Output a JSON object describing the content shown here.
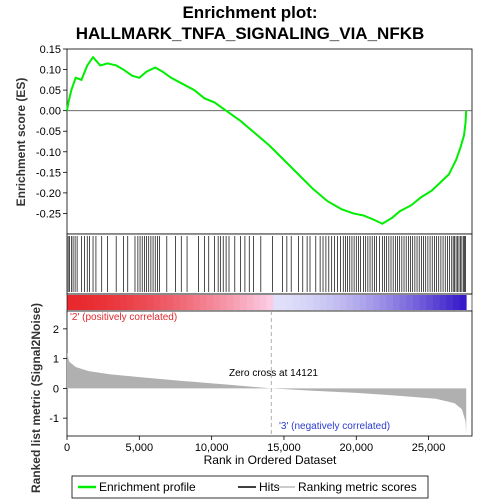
{
  "title_line1": "Enrichment plot:",
  "title_line2": "HALLMARK_TNFA_SIGNALING_VIA_NFKB",
  "top_ylabel": "Enrichment score (ES)",
  "bottom_ylabel": "Ranked list metric (Signal2Noise)",
  "xlabel": "Rank in Ordered Dataset",
  "zero_cross_label": "Zero cross at 14121",
  "pos_label": "'2' (positively correlated)",
  "neg_label": "'3' (negatively correlated)",
  "legend": {
    "enrichment": "Enrichment profile",
    "hits": "Hits",
    "ranking": "Ranking metric scores"
  },
  "colors": {
    "enrichment": "#00ee00",
    "hits": "#000000",
    "metric_fill": "#b0b0b0",
    "positive": "#e0282d",
    "negative": "#2b3bd0"
  },
  "chart_data": {
    "type": "line",
    "x_range": [
      0,
      28000
    ],
    "x_ticks": [
      0,
      5000,
      10000,
      15000,
      20000,
      25000
    ],
    "x_tick_labels": [
      "0",
      "5,000",
      "10,000",
      "15,000",
      "20,000",
      "25,000"
    ],
    "total_genes": 27600,
    "zero_cross": 14121,
    "es": {
      "ylim": [
        -0.3,
        0.15
      ],
      "y_ticks": [
        -0.25,
        -0.2,
        -0.15,
        -0.1,
        -0.05,
        0.0,
        0.05,
        0.1,
        0.15
      ],
      "y_tick_labels": [
        "-0.25",
        "-0.20",
        "-0.15",
        "-0.10",
        "-0.05",
        "0.00",
        "0.05",
        "0.10",
        "0.15"
      ],
      "points": [
        [
          0,
          0.0
        ],
        [
          100,
          0.02
        ],
        [
          300,
          0.05
        ],
        [
          600,
          0.08
        ],
        [
          1000,
          0.075
        ],
        [
          1400,
          0.11
        ],
        [
          1800,
          0.13
        ],
        [
          2300,
          0.11
        ],
        [
          2800,
          0.115
        ],
        [
          3400,
          0.11
        ],
        [
          3900,
          0.1
        ],
        [
          4500,
          0.085
        ],
        [
          5000,
          0.08
        ],
        [
          5500,
          0.095
        ],
        [
          6100,
          0.105
        ],
        [
          6600,
          0.095
        ],
        [
          7200,
          0.08
        ],
        [
          8000,
          0.065
        ],
        [
          8800,
          0.05
        ],
        [
          9500,
          0.03
        ],
        [
          10200,
          0.02
        ],
        [
          11000,
          0.0
        ],
        [
          12000,
          -0.025
        ],
        [
          13000,
          -0.055
        ],
        [
          14000,
          -0.085
        ],
        [
          15000,
          -0.12
        ],
        [
          16000,
          -0.155
        ],
        [
          17000,
          -0.19
        ],
        [
          18000,
          -0.22
        ],
        [
          19000,
          -0.24
        ],
        [
          19800,
          -0.25
        ],
        [
          20500,
          -0.255
        ],
        [
          21200,
          -0.265
        ],
        [
          21800,
          -0.275
        ],
        [
          22500,
          -0.26
        ],
        [
          23000,
          -0.245
        ],
        [
          23800,
          -0.23
        ],
        [
          24500,
          -0.21
        ],
        [
          25200,
          -0.195
        ],
        [
          25800,
          -0.175
        ],
        [
          26400,
          -0.155
        ],
        [
          26900,
          -0.12
        ],
        [
          27200,
          -0.09
        ],
        [
          27450,
          -0.06
        ],
        [
          27550,
          -0.03
        ],
        [
          27600,
          0.0
        ]
      ]
    },
    "metric": {
      "ylim": [
        -1.6,
        2.6
      ],
      "y_ticks": [
        -1,
        0,
        1,
        2
      ],
      "y_tick_labels": [
        "-1",
        "0",
        "1",
        "2"
      ],
      "points": [
        [
          0,
          1.2
        ],
        [
          150,
          0.9
        ],
        [
          600,
          0.72
        ],
        [
          1500,
          0.58
        ],
        [
          3000,
          0.47
        ],
        [
          5000,
          0.38
        ],
        [
          8000,
          0.25
        ],
        [
          11000,
          0.13
        ],
        [
          14121,
          0.0
        ],
        [
          17000,
          -0.08
        ],
        [
          20000,
          -0.15
        ],
        [
          23000,
          -0.25
        ],
        [
          25500,
          -0.35
        ],
        [
          26800,
          -0.5
        ],
        [
          27300,
          -0.7
        ],
        [
          27550,
          -1.1
        ],
        [
          27600,
          -1.5
        ]
      ]
    },
    "hits": [
      80,
      180,
      300,
      420,
      560,
      700,
      1000,
      1200,
      1400,
      1550,
      1800,
      2000,
      2400,
      2800,
      3400,
      3900,
      4200,
      4700,
      4900,
      5050,
      5200,
      5350,
      5500,
      5650,
      5800,
      5950,
      6100,
      6250,
      6400,
      6900,
      7500,
      7900,
      8300,
      9100,
      9500,
      9800,
      10200,
      10450,
      10600,
      10800,
      11000,
      11200,
      11600,
      12000,
      12300,
      12600,
      12900,
      13400,
      14200,
      14900,
      15200,
      15500,
      16000,
      16300,
      16600,
      16800,
      17200,
      17500,
      17700,
      17900,
      18100,
      18300,
      18500,
      18700,
      18900,
      19100,
      19250,
      19400,
      19550,
      19700,
      19850,
      20000,
      20150,
      20300,
      20500,
      20650,
      20800,
      20950,
      21100,
      21250,
      21400,
      21600,
      21800,
      21950,
      22100,
      22250,
      22400,
      22550,
      22700,
      22850,
      23000,
      23150,
      23300,
      23450,
      23600,
      23750,
      23900,
      24050,
      24200,
      24350,
      24500,
      24650,
      24800,
      24950,
      25100,
      25250,
      25400,
      25550,
      25700,
      25850,
      26000,
      26150,
      26300,
      26450,
      26600,
      26700,
      26800,
      26900,
      27000,
      27100,
      27200,
      27300,
      27400,
      27480,
      27560
    ]
  }
}
